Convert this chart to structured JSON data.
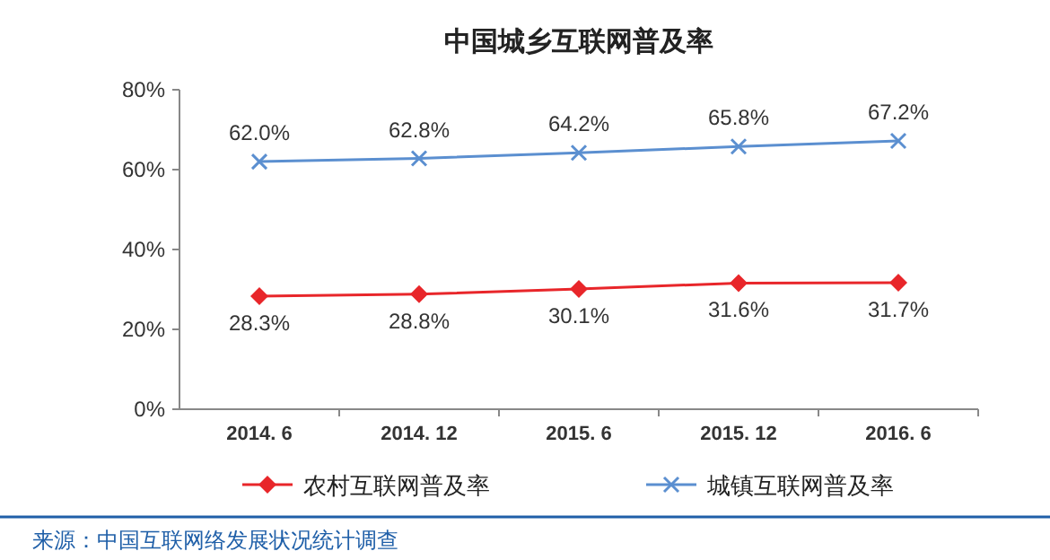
{
  "chart_data": {
    "type": "line",
    "title": "中国城乡互联网普及率",
    "categories": [
      "2014. 6",
      "2014. 12",
      "2015. 6",
      "2015. 12",
      "2016. 6"
    ],
    "series": [
      {
        "name": "农村互联网普及率",
        "color": "#e8262a",
        "marker": "diamond",
        "values": [
          28.3,
          28.8,
          30.1,
          31.6,
          31.7
        ],
        "value_labels": [
          "28.3%",
          "28.8%",
          "30.1%",
          "31.6%",
          "31.7%"
        ]
      },
      {
        "name": "城镇互联网普及率",
        "color": "#5b8fd0",
        "marker": "cross",
        "values": [
          62.0,
          62.8,
          64.2,
          65.8,
          67.2
        ],
        "value_labels": [
          "62.0%",
          "62.8%",
          "64.2%",
          "65.8%",
          "67.2%"
        ]
      }
    ],
    "ylim": [
      0,
      80
    ],
    "yticks": [
      {
        "value": 0,
        "label": "0%"
      },
      {
        "value": 20,
        "label": "20%"
      },
      {
        "value": 40,
        "label": "40%"
      },
      {
        "value": 60,
        "label": "60%"
      },
      {
        "value": 80,
        "label": "80%"
      }
    ],
    "legend": "bottom",
    "grid": false,
    "annotations": [
      "来源：中国互联网络发展状况统计调查"
    ]
  }
}
